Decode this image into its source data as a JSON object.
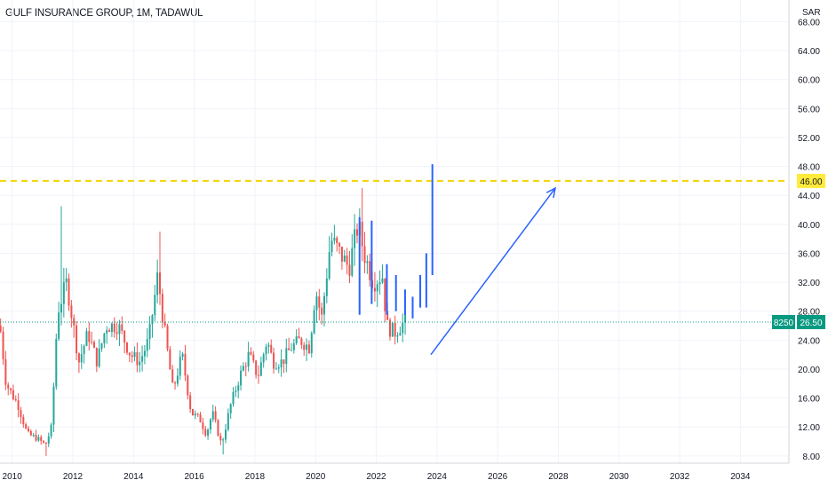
{
  "chart_data": {
    "type": "candlestick",
    "title": "GULF INSURANCE GROUP, 1M, TADAWUL",
    "currency": "SAR",
    "symbol_tag": "8250",
    "last_price": "26.50",
    "last_price_value": 26.5,
    "horizontal_level": "46.00",
    "horizontal_level_value": 46.0,
    "ylim": [
      7,
      71
    ],
    "xlim": [
      2009.6,
      2035.6
    ],
    "y_ticks": [
      "8.00",
      "12.00",
      "16.00",
      "20.00",
      "24.00",
      "28.00",
      "32.00",
      "36.00",
      "40.00",
      "44.00",
      "48.00",
      "52.00",
      "56.00",
      "60.00",
      "64.00",
      "68.00"
    ],
    "x_ticks": [
      "2010",
      "2012",
      "2014",
      "2016",
      "2018",
      "2020",
      "2022",
      "2024",
      "2026",
      "2028",
      "2030",
      "2032",
      "2034"
    ],
    "grid": true,
    "colors": {
      "up": "#26a69a",
      "down": "#ef5350",
      "level_line": "#f5d400",
      "level_label_bg": "#ffeb3b",
      "last_price_bg": "#089981",
      "drawing": "#2962ff",
      "grid": "#f0f3fa",
      "axis_text": "#131722"
    },
    "projection_bars": [
      {
        "x": 2021.45,
        "low": 27.5,
        "high": 41.0
      },
      {
        "x": 2021.85,
        "low": 29.0,
        "high": 40.5
      },
      {
        "x": 2022.35,
        "low": 27.5,
        "high": 34.5
      },
      {
        "x": 2022.65,
        "low": 28.0,
        "high": 33.0
      },
      {
        "x": 2022.95,
        "low": 27.5,
        "high": 31.0
      },
      {
        "x": 2023.2,
        "low": 27.0,
        "high": 30.0
      },
      {
        "x": 2023.45,
        "low": 28.5,
        "high": 33.0
      },
      {
        "x": 2023.65,
        "low": 28.5,
        "high": 36.0
      },
      {
        "x": 2023.85,
        "low": 33.0,
        "high": 48.3
      }
    ],
    "projection_arrow": {
      "from": {
        "x": 2023.8,
        "y": 22.0
      },
      "to": {
        "x": 2027.9,
        "y": 45.0
      }
    }
  }
}
